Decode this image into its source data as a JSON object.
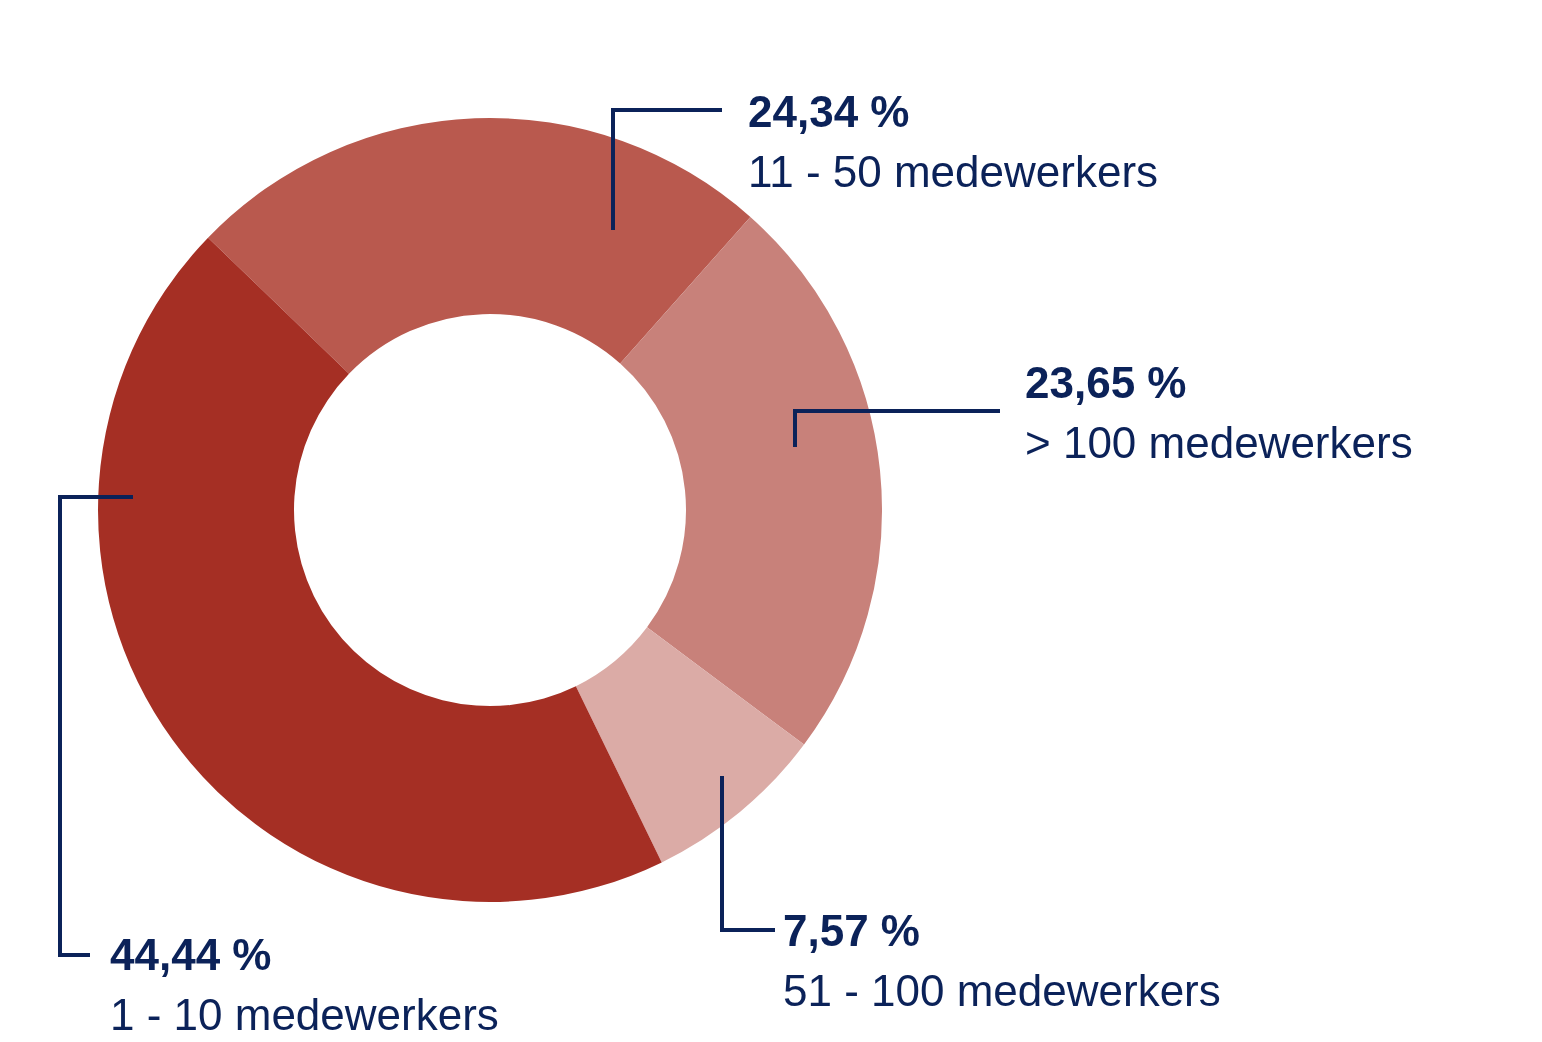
{
  "chart_data": {
    "type": "donut",
    "categories": [
      "11 - 50 medewerkers",
      "> 100 medewerkers",
      "51 - 100 medewerkers",
      "1 - 10 medewerkers"
    ],
    "values": [
      24.34,
      23.65,
      7.57,
      44.44
    ],
    "value_labels": [
      "24,34 %",
      "23,65 %",
      "7,57 %",
      "44,44 %"
    ],
    "colors": [
      "#b9594e",
      "#c8817a",
      "#dbaba6",
      "#a52f24"
    ]
  }
}
